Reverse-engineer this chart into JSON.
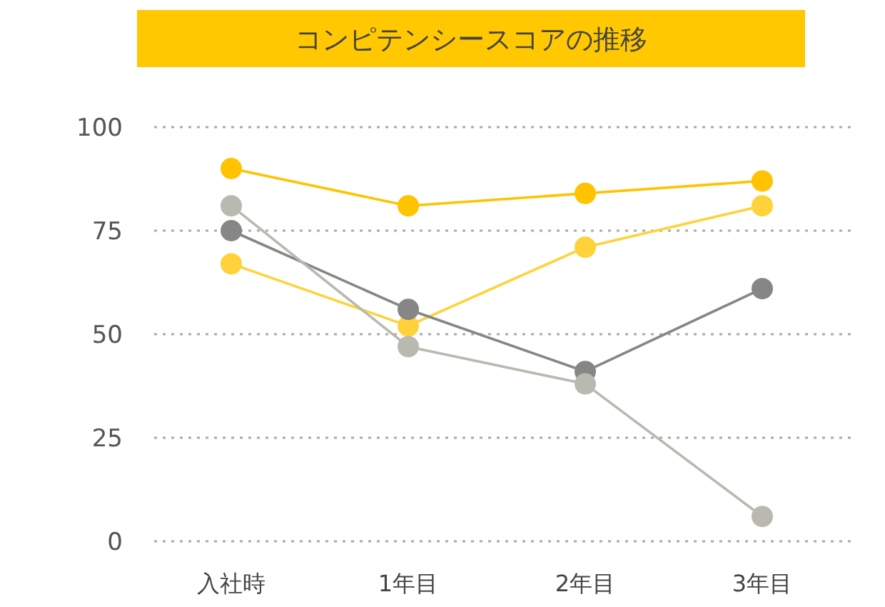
{
  "chart_data": {
    "type": "line",
    "title": "コンピテンシースコアの推移",
    "categories": [
      "入社時",
      "1年目",
      "2年目",
      "3年目"
    ],
    "series": [
      {
        "color": "#ffc300",
        "values": [
          90,
          81,
          84,
          87
        ]
      },
      {
        "color": "#ffd23c",
        "values": [
          67,
          52,
          71,
          81
        ]
      },
      {
        "color": "#868686",
        "values": [
          75,
          56,
          41,
          61
        ]
      },
      {
        "color": "#b9b9b0",
        "values": [
          81,
          47,
          38,
          6
        ]
      }
    ],
    "ylim": [
      0,
      100
    ],
    "yticks": [
      0,
      25,
      50,
      75,
      100
    ],
    "grid": "y",
    "marker": "circle",
    "line_style": "solid"
  }
}
